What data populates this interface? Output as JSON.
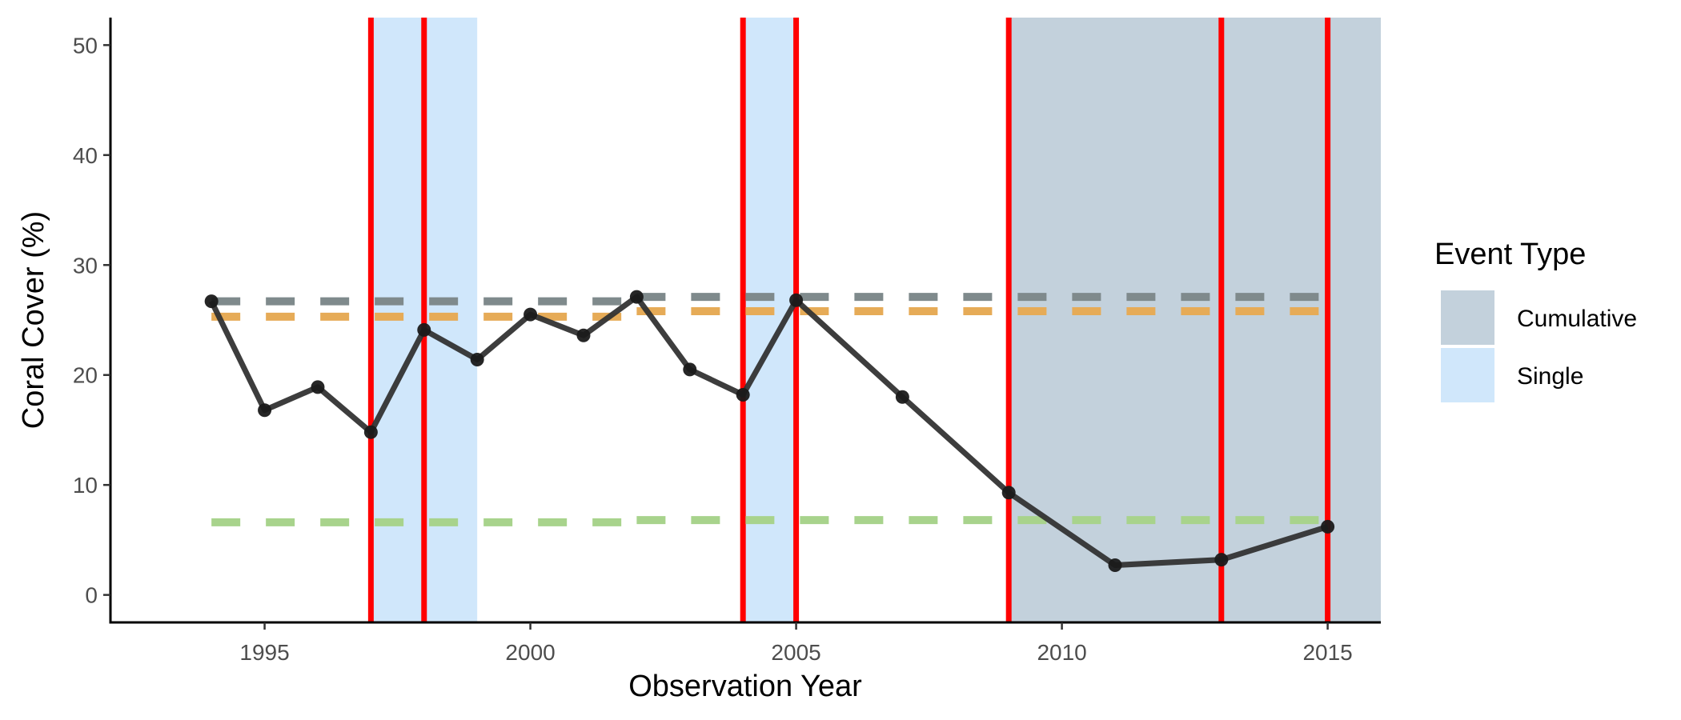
{
  "chart_data": {
    "type": "line",
    "xlabel": "Observation Year",
    "ylabel": "Coral Cover (%)",
    "xlim": [
      1992.1,
      2016.0
    ],
    "ylim": [
      -2.5,
      52.5
    ],
    "x_ticks": [
      1995,
      2000,
      2005,
      2010,
      2015
    ],
    "y_ticks": [
      0,
      10,
      20,
      30,
      40,
      50
    ],
    "grid": false,
    "legend_position": "right",
    "legend": {
      "title": "Event Type",
      "entries": [
        {
          "label": "Cumulative",
          "color": "#c3d1dc"
        },
        {
          "label": "Single",
          "color": "#d0e7fb"
        }
      ]
    },
    "event_periods": [
      {
        "type": "Single",
        "start": 1997,
        "end": 1999
      },
      {
        "type": "Single",
        "start": 2004,
        "end": 2005
      },
      {
        "type": "Cumulative",
        "start": 2009,
        "end": 2016
      }
    ],
    "event_lines": {
      "color": "#ff0000",
      "years": [
        1997,
        1998,
        2004,
        2005,
        2009,
        2013,
        2015
      ]
    },
    "reference_lines": [
      {
        "color": "#7f8a8c",
        "segments": [
          {
            "x": [
              1994,
              2002
            ],
            "y": 26.7
          },
          {
            "x": [
              2002,
              2015
            ],
            "y": 27.1
          }
        ]
      },
      {
        "color": "#e6ab57",
        "segments": [
          {
            "x": [
              1994,
              2002
            ],
            "y": 25.3
          },
          {
            "x": [
              2002,
              2015
            ],
            "y": 25.8
          }
        ]
      },
      {
        "color": "#a8d38c",
        "segments": [
          {
            "x": [
              1994,
              2002
            ],
            "y": 6.6
          },
          {
            "x": [
              2002,
              2015
            ],
            "y": 6.8
          }
        ]
      }
    ],
    "series": [
      {
        "color": "#333333",
        "x": [
          1994,
          1995,
          1996,
          1997,
          1998,
          1999,
          2000,
          2001,
          2002,
          2003,
          2004,
          2005,
          2007,
          2009,
          2011,
          2013,
          2015
        ],
        "y": [
          26.7,
          16.8,
          18.9,
          14.8,
          24.1,
          21.4,
          25.5,
          23.6,
          27.1,
          20.5,
          18.2,
          26.8,
          18.0,
          9.3,
          2.7,
          3.2,
          6.2
        ]
      }
    ]
  }
}
